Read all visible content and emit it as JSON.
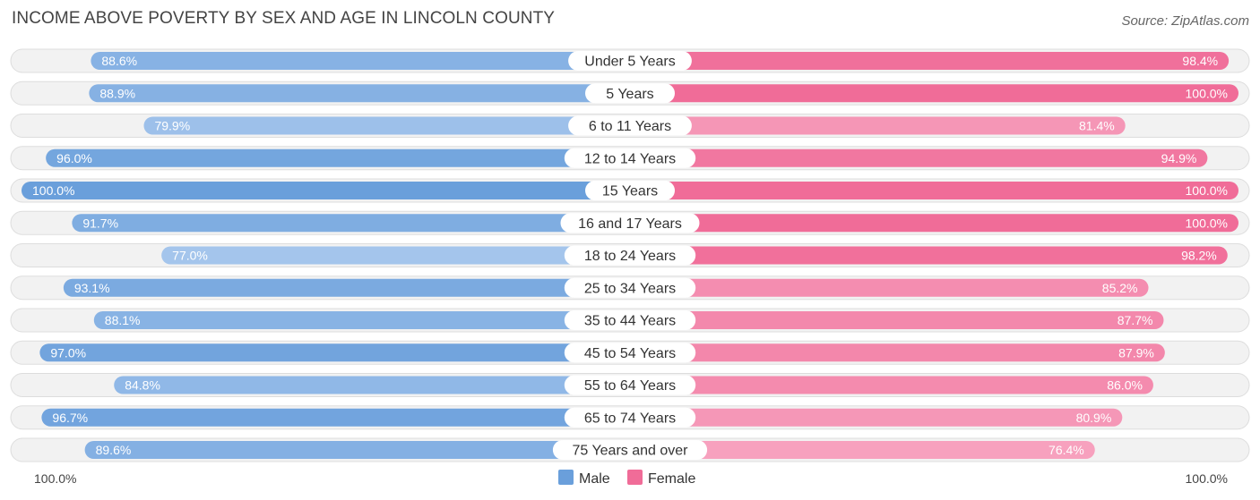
{
  "chart_data": {
    "type": "bar",
    "orientation": "diverging-horizontal",
    "title": "INCOME ABOVE POVERTY BY SEX AND AGE IN LINCOLN COUNTY",
    "source": "Source: ZipAtlas.com",
    "categories": [
      "Under 5 Years",
      "5 Years",
      "6 to 11 Years",
      "12 to 14 Years",
      "15 Years",
      "16 and 17 Years",
      "18 to 24 Years",
      "25 to 34 Years",
      "35 to 44 Years",
      "45 to 54 Years",
      "55 to 64 Years",
      "65 to 74 Years",
      "75 Years and over"
    ],
    "series": [
      {
        "name": "Male",
        "color": "#6a9fdb",
        "values": [
          88.6,
          88.9,
          79.9,
          96.0,
          100.0,
          91.7,
          77.0,
          93.1,
          88.1,
          97.0,
          84.8,
          96.7,
          89.6
        ]
      },
      {
        "name": "Female",
        "color": "#f06c98",
        "values": [
          98.4,
          100.0,
          81.4,
          94.9,
          100.0,
          100.0,
          98.2,
          85.2,
          87.7,
          87.9,
          86.0,
          80.9,
          76.4
        ]
      }
    ],
    "value_labels": {
      "Male": [
        "88.6%",
        "88.9%",
        "79.9%",
        "96.0%",
        "100.0%",
        "91.7%",
        "77.0%",
        "93.1%",
        "88.1%",
        "97.0%",
        "84.8%",
        "96.7%",
        "89.6%"
      ],
      "Female": [
        "98.4%",
        "100.0%",
        "81.4%",
        "94.9%",
        "100.0%",
        "100.0%",
        "98.2%",
        "85.2%",
        "87.7%",
        "87.9%",
        "86.0%",
        "80.9%",
        "76.4%"
      ]
    },
    "xlim": [
      0,
      100
    ],
    "axis_left_label": "100.0%",
    "axis_right_label": "100.0%",
    "legend": {
      "position": "bottom-center",
      "items": [
        "Male",
        "Female"
      ]
    }
  }
}
